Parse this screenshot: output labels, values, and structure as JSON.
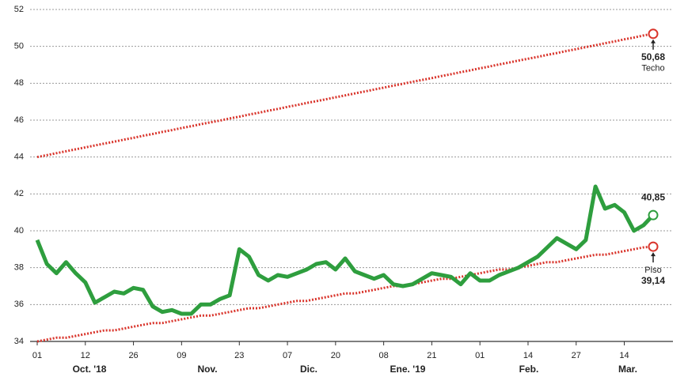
{
  "chart_data": {
    "type": "line",
    "categories": [
      "01",
      null,
      null,
      null,
      null,
      "12",
      null,
      null,
      null,
      null,
      "26",
      null,
      null,
      null,
      null,
      "09",
      null,
      null,
      null,
      null,
      null,
      "23",
      null,
      null,
      null,
      null,
      "07",
      null,
      null,
      null,
      null,
      "20",
      null,
      null,
      null,
      null,
      "08",
      null,
      null,
      null,
      null,
      "21",
      null,
      null,
      null,
      null,
      "01",
      null,
      null,
      null,
      null,
      "14",
      null,
      null,
      null,
      null,
      "27",
      null,
      null,
      null,
      null,
      "14",
      null,
      null,
      null
    ],
    "month_labels": [
      "Oct. '18",
      "Nov.",
      "Dic.",
      "Ene. '19",
      "Feb.",
      "Mar."
    ],
    "series": [
      {
        "name": "Techo",
        "color": "#d9342b",
        "dotted": true,
        "values": [
          44.0,
          44.1,
          44.21,
          44.31,
          44.42,
          44.52,
          44.63,
          44.73,
          44.83,
          44.94,
          45.04,
          45.15,
          45.25,
          45.36,
          45.46,
          45.57,
          45.67,
          45.78,
          45.88,
          45.98,
          46.09,
          46.19,
          46.3,
          46.4,
          46.51,
          46.61,
          46.72,
          46.82,
          46.93,
          47.03,
          47.13,
          47.24,
          47.34,
          47.45,
          47.55,
          47.66,
          47.76,
          47.87,
          47.97,
          48.08,
          48.18,
          48.28,
          48.39,
          48.49,
          48.6,
          48.7,
          48.81,
          48.91,
          49.02,
          49.12,
          49.23,
          49.33,
          49.43,
          49.54,
          49.64,
          49.75,
          49.85,
          49.96,
          50.06,
          50.17,
          50.27,
          50.38,
          50.48,
          50.59,
          50.68
        ],
        "value_labels": [
          null,
          null,
          null,
          null,
          null,
          null,
          null,
          null,
          null,
          null,
          null,
          null,
          null,
          null,
          null,
          null,
          null,
          null,
          null,
          null,
          null,
          null,
          null,
          null,
          null,
          null,
          null,
          null,
          null,
          null,
          null,
          null,
          null,
          null,
          null,
          null,
          null,
          null,
          null,
          null,
          null,
          null,
          null,
          null,
          null,
          null,
          null,
          null,
          null,
          null,
          null,
          null,
          null,
          null,
          null,
          null,
          null,
          null,
          null,
          null,
          null,
          null,
          null,
          null,
          "50,68"
        ]
      },
      {
        "name": "Piso",
        "color": "#d9342b",
        "dotted": true,
        "values": [
          34.0,
          34.1,
          34.2,
          34.2,
          34.3,
          34.4,
          34.5,
          34.6,
          34.6,
          34.7,
          34.8,
          34.9,
          35.0,
          35.0,
          35.1,
          35.2,
          35.3,
          35.4,
          35.4,
          35.5,
          35.6,
          35.7,
          35.8,
          35.8,
          35.9,
          36.0,
          36.1,
          36.2,
          36.2,
          36.3,
          36.4,
          36.5,
          36.6,
          36.6,
          36.7,
          36.8,
          36.9,
          37.0,
          37.0,
          37.1,
          37.2,
          37.3,
          37.4,
          37.4,
          37.5,
          37.6,
          37.7,
          37.8,
          37.9,
          37.9,
          38.0,
          38.1,
          38.2,
          38.3,
          38.3,
          38.4,
          38.5,
          38.6,
          38.7,
          38.7,
          38.8,
          38.9,
          39.0,
          39.1,
          39.14
        ],
        "value_labels": [
          null,
          null,
          null,
          null,
          null,
          null,
          null,
          null,
          null,
          null,
          null,
          null,
          null,
          null,
          null,
          null,
          null,
          null,
          null,
          null,
          null,
          null,
          null,
          null,
          null,
          null,
          null,
          null,
          null,
          null,
          null,
          null,
          null,
          null,
          null,
          null,
          null,
          null,
          null,
          null,
          null,
          null,
          null,
          null,
          null,
          null,
          null,
          null,
          null,
          null,
          null,
          null,
          null,
          null,
          null,
          null,
          null,
          null,
          null,
          null,
          null,
          null,
          null,
          null,
          "39,14"
        ]
      },
      {
        "color": "#2e9e3e",
        "dotted": false,
        "values": [
          39.5,
          38.2,
          37.7,
          38.3,
          37.7,
          37.2,
          36.1,
          36.4,
          36.7,
          36.6,
          36.9,
          36.8,
          35.9,
          35.6,
          35.7,
          35.5,
          35.5,
          36.0,
          36.0,
          36.3,
          36.5,
          39.0,
          38.6,
          37.6,
          37.3,
          37.6,
          37.5,
          37.7,
          37.9,
          38.2,
          38.3,
          37.9,
          38.5,
          37.8,
          37.6,
          37.4,
          37.6,
          37.1,
          37.0,
          37.1,
          37.4,
          37.7,
          37.6,
          37.5,
          37.1,
          37.7,
          37.3,
          37.3,
          37.6,
          37.8,
          38.0,
          38.3,
          38.6,
          39.1,
          39.6,
          39.3,
          39.0,
          39.5,
          42.4,
          41.2,
          41.4,
          41.0,
          40.0,
          40.3,
          40.85
        ],
        "value_labels": [
          null,
          null,
          null,
          null,
          null,
          null,
          null,
          null,
          null,
          null,
          null,
          null,
          null,
          null,
          null,
          null,
          null,
          null,
          null,
          null,
          null,
          null,
          null,
          null,
          null,
          null,
          null,
          null,
          null,
          null,
          null,
          null,
          null,
          null,
          null,
          null,
          null,
          null,
          null,
          null,
          null,
          null,
          null,
          null,
          null,
          null,
          null,
          null,
          null,
          null,
          null,
          null,
          null,
          null,
          null,
          null,
          null,
          null,
          null,
          null,
          null,
          null,
          null,
          null,
          "40,85"
        ]
      }
    ],
    "ylim": [
      34,
      52
    ],
    "yticks": [
      34,
      36,
      38,
      40,
      42,
      44,
      46,
      48,
      50,
      52
    ],
    "grid": true
  }
}
